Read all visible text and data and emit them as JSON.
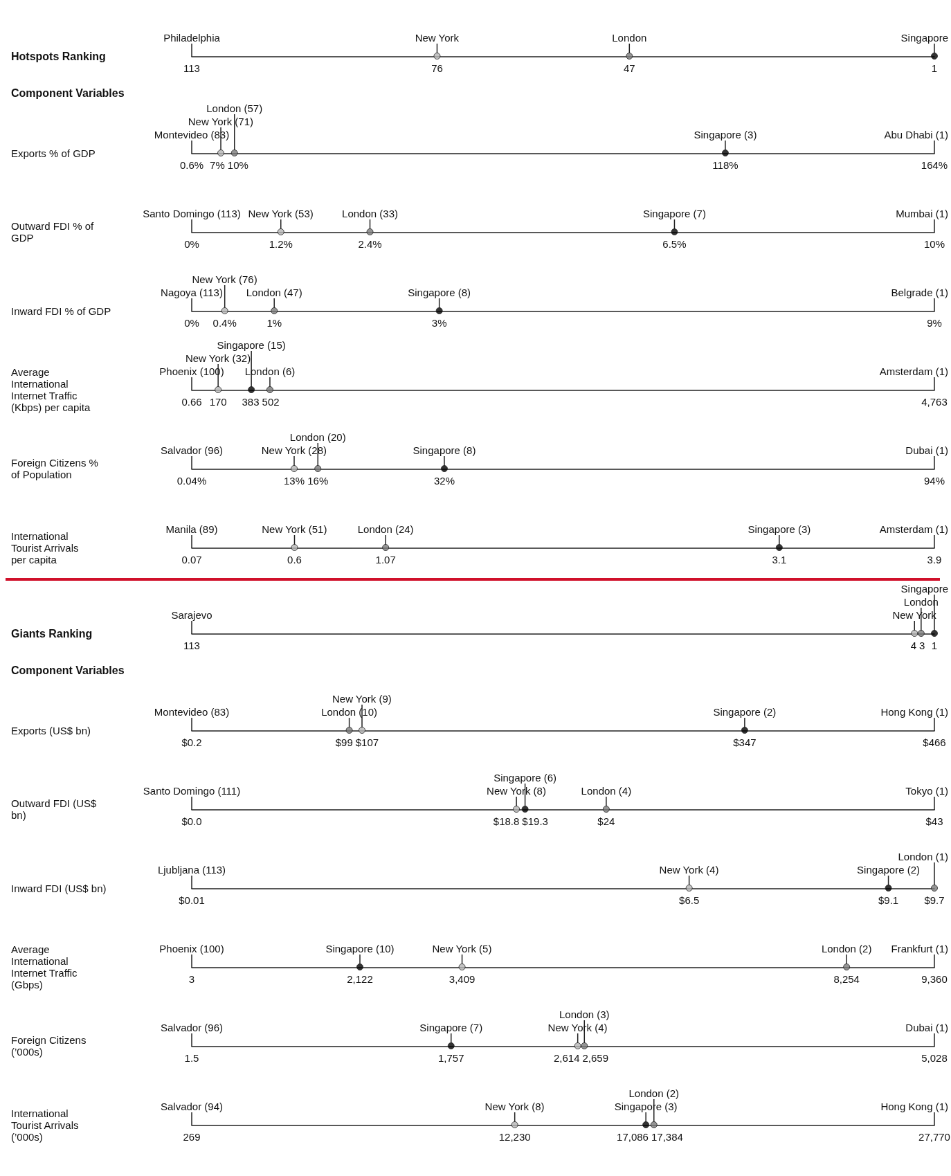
{
  "chart_data": [
    {
      "type": "scatter",
      "orientation": "horizontal",
      "categories": [
        "Hotspots Ranking"
      ],
      "xlim": [
        113,
        1
      ],
      "xticks": [
        113,
        1
      ],
      "marker": "circle",
      "series": [
        {
          "name": "New York",
          "color": "#b5b5b5",
          "values": [
            76
          ],
          "value_labels": [
            "76"
          ]
        },
        {
          "name": "London",
          "color": "#7a7a7a",
          "values": [
            47
          ],
          "value_labels": [
            "47"
          ]
        },
        {
          "name": "Singapore",
          "color": "#000000",
          "values": [
            1
          ]
        }
      ],
      "ref_lines": [
        {
          "axis": "x",
          "value": 113,
          "label": "Philadelphia"
        }
      ],
      "annotations": [
        "Component Variables"
      ]
    },
    {
      "type": "scatter",
      "orientation": "horizontal",
      "categories": [
        "Exports % of GDP"
      ],
      "xlim": [
        0.6,
        164
      ],
      "xticks": [
        {
          "value": 0.6,
          "label": "0.6%"
        },
        {
          "value": 164,
          "label": "164%"
        }
      ],
      "marker": "circle",
      "series": [
        {
          "name": "New York (71)",
          "color": "#b5b5b5",
          "values": [
            7
          ],
          "value_labels": [
            "7%"
          ]
        },
        {
          "name": "London (57)",
          "color": "#7a7a7a",
          "values": [
            10
          ],
          "value_labels": [
            "10%"
          ]
        },
        {
          "name": "Singapore (3)",
          "color": "#000000",
          "values": [
            118
          ],
          "value_labels": [
            "118%"
          ]
        }
      ],
      "ref_lines": [
        {
          "axis": "x",
          "value": 0.6,
          "label": "Montevideo (83)"
        },
        {
          "axis": "x",
          "value": 164,
          "label": "Abu Dhabi (1)"
        }
      ]
    },
    {
      "type": "scatter",
      "orientation": "horizontal",
      "categories": [
        "Outward FDI % of GDP"
      ],
      "xlim": [
        0,
        10
      ],
      "xticks": [
        {
          "value": 0,
          "label": "0%"
        },
        {
          "value": 10,
          "label": "10%"
        }
      ],
      "marker": "circle",
      "series": [
        {
          "name": "New York (53)",
          "color": "#b5b5b5",
          "values": [
            1.2
          ],
          "value_labels": [
            "1.2%"
          ]
        },
        {
          "name": "London (33)",
          "color": "#7a7a7a",
          "values": [
            2.4
          ],
          "value_labels": [
            "2.4%"
          ]
        },
        {
          "name": "Singapore (7)",
          "color": "#000000",
          "values": [
            6.5
          ],
          "value_labels": [
            "6.5%"
          ]
        }
      ],
      "ref_lines": [
        {
          "axis": "x",
          "value": 0,
          "label": "Santo Domingo (113)"
        },
        {
          "axis": "x",
          "value": 10,
          "label": "Mumbai (1)"
        }
      ]
    },
    {
      "type": "scatter",
      "orientation": "horizontal",
      "categories": [
        "Inward FDI % of GDP"
      ],
      "xlim": [
        0,
        9
      ],
      "xticks": [
        {
          "value": 0,
          "label": "0%"
        },
        {
          "value": 9,
          "label": "9%"
        }
      ],
      "marker": "circle",
      "series": [
        {
          "name": "New York (76)",
          "color": "#b5b5b5",
          "values": [
            0.4
          ],
          "value_labels": [
            "0.4%"
          ]
        },
        {
          "name": "London (47)",
          "color": "#7a7a7a",
          "values": [
            1
          ],
          "value_labels": [
            "1%"
          ]
        },
        {
          "name": "Singapore (8)",
          "color": "#000000",
          "values": [
            3
          ],
          "value_labels": [
            "3%"
          ]
        }
      ],
      "ref_lines": [
        {
          "axis": "x",
          "value": 0,
          "label": "Nagoya (113)"
        },
        {
          "axis": "x",
          "value": 9,
          "label": "Belgrade (1)"
        }
      ]
    },
    {
      "type": "scatter",
      "orientation": "horizontal",
      "categories": [
        "Average International Internet Traffic (Kbps) per capita"
      ],
      "xlim": [
        0.66,
        4763
      ],
      "xticks": [
        0.66,
        {
          "value": 4763,
          "label": "4,763"
        }
      ],
      "marker": "circle",
      "series": [
        {
          "name": "New York (32)",
          "color": "#b5b5b5",
          "values": [
            170
          ],
          "value_labels": [
            "170"
          ]
        },
        {
          "name": "Singapore (15)",
          "color": "#000000",
          "values": [
            383
          ],
          "value_labels": [
            "383"
          ]
        },
        {
          "name": "London (6)",
          "color": "#7a7a7a",
          "values": [
            502
          ],
          "value_labels": [
            "502"
          ]
        }
      ],
      "ref_lines": [
        {
          "axis": "x",
          "value": 0.66,
          "label": "Phoenix (100)"
        },
        {
          "axis": "x",
          "value": 4763,
          "label": "Amsterdam (1)"
        }
      ]
    },
    {
      "type": "scatter",
      "orientation": "horizontal",
      "categories": [
        "Foreign Citizens % of Population"
      ],
      "xlim": [
        0.04,
        94
      ],
      "xticks": [
        {
          "value": 0.04,
          "label": "0.04%"
        },
        {
          "value": 94,
          "label": "94%"
        }
      ],
      "marker": "circle",
      "series": [
        {
          "name": "New York (28)",
          "color": "#b5b5b5",
          "values": [
            13
          ],
          "value_labels": [
            "13%"
          ]
        },
        {
          "name": "London (20)",
          "color": "#7a7a7a",
          "values": [
            16
          ],
          "value_labels": [
            "16%"
          ]
        },
        {
          "name": "Singapore (8)",
          "color": "#000000",
          "values": [
            32
          ],
          "value_labels": [
            "32%"
          ]
        }
      ],
      "ref_lines": [
        {
          "axis": "x",
          "value": 0.04,
          "label": "Salvador (96)"
        },
        {
          "axis": "x",
          "value": 94,
          "label": "Dubai (1)"
        }
      ]
    },
    {
      "type": "scatter",
      "orientation": "horizontal",
      "categories": [
        "International Tourist Arrivals per capita"
      ],
      "xlim": [
        0.07,
        3.9
      ],
      "xticks": [
        0.07,
        3.9
      ],
      "marker": "circle",
      "series": [
        {
          "name": "New York (51)",
          "color": "#b5b5b5",
          "values": [
            0.6
          ],
          "value_labels": [
            "0.6"
          ]
        },
        {
          "name": "London (24)",
          "color": "#7a7a7a",
          "values": [
            1.07
          ],
          "value_labels": [
            "1.07"
          ]
        },
        {
          "name": "Singapore (3)",
          "color": "#000000",
          "values": [
            3.1
          ],
          "value_labels": [
            "3.1"
          ]
        }
      ],
      "ref_lines": [
        {
          "axis": "x",
          "value": 0.07,
          "label": "Manila (89)"
        },
        {
          "axis": "x",
          "value": 3.9,
          "label": "Amsterdam (1)"
        }
      ]
    },
    {
      "type": "scatter",
      "orientation": "horizontal",
      "categories": [
        "Giants Ranking"
      ],
      "xlim": [
        113,
        1
      ],
      "xticks": [
        113,
        1
      ],
      "marker": "circle",
      "series": [
        {
          "name": "New York",
          "color": "#b5b5b5",
          "values": [
            4
          ],
          "value_labels": [
            "4"
          ]
        },
        {
          "name": "London",
          "color": "#7a7a7a",
          "values": [
            3
          ],
          "value_labels": [
            "3"
          ]
        },
        {
          "name": "Singapore",
          "color": "#000000",
          "values": [
            1
          ]
        }
      ],
      "ref_lines": [
        {
          "axis": "x",
          "value": 113,
          "label": "Sarajevo"
        }
      ],
      "annotations": [
        "Component Variables"
      ]
    },
    {
      "type": "scatter",
      "orientation": "horizontal",
      "categories": [
        "Exports (US$ bn)"
      ],
      "xlim": [
        0.2,
        466
      ],
      "xticks": [
        {
          "value": 0.2,
          "label": "$0.2"
        },
        {
          "value": 466,
          "label": "$466"
        }
      ],
      "marker": "circle",
      "series": [
        {
          "name": "London (10)",
          "color": "#7a7a7a",
          "values": [
            99
          ],
          "value_labels": [
            "$99"
          ]
        },
        {
          "name": "New York (9)",
          "color": "#b5b5b5",
          "values": [
            107
          ],
          "value_labels": [
            "$107"
          ]
        },
        {
          "name": "Singapore (2)",
          "color": "#000000",
          "values": [
            347
          ],
          "value_labels": [
            "$347"
          ]
        }
      ],
      "ref_lines": [
        {
          "axis": "x",
          "value": 0.2,
          "label": "Montevideo (83)"
        },
        {
          "axis": "x",
          "value": 466,
          "label": "Hong Kong (1)"
        }
      ]
    },
    {
      "type": "scatter",
      "orientation": "horizontal",
      "categories": [
        "Outward FDI (US$ bn)"
      ],
      "xlim": [
        0,
        43
      ],
      "xticks": [
        {
          "value": 0,
          "label": "$0.0"
        },
        {
          "value": 43,
          "label": "$43"
        }
      ],
      "marker": "circle",
      "series": [
        {
          "name": "New York (8)",
          "color": "#b5b5b5",
          "values": [
            18.8
          ],
          "value_labels": [
            "$18.8"
          ]
        },
        {
          "name": "Singapore (6)",
          "color": "#000000",
          "values": [
            19.3
          ],
          "value_labels": [
            "$19.3"
          ]
        },
        {
          "name": "London (4)",
          "color": "#7a7a7a",
          "values": [
            24
          ],
          "value_labels": [
            "$24"
          ]
        }
      ],
      "ref_lines": [
        {
          "axis": "x",
          "value": 0,
          "label": "Santo Domingo (111)"
        },
        {
          "axis": "x",
          "value": 43,
          "label": "Tokyo (1)"
        }
      ]
    },
    {
      "type": "scatter",
      "orientation": "horizontal",
      "categories": [
        "Inward FDI (US$ bn)"
      ],
      "xlim": [
        0.01,
        9.7
      ],
      "xticks": [
        {
          "value": 0.01,
          "label": "$0.01"
        },
        {
          "value": 9.7,
          "label": "$9.7"
        }
      ],
      "marker": "circle",
      "series": [
        {
          "name": "New York (4)",
          "color": "#b5b5b5",
          "values": [
            6.5
          ],
          "value_labels": [
            "$6.5"
          ]
        },
        {
          "name": "Singapore (2)",
          "color": "#000000",
          "values": [
            9.1
          ],
          "value_labels": [
            "$9.1"
          ]
        },
        {
          "name": "London (1)",
          "color": "#7a7a7a",
          "values": [
            9.7
          ]
        }
      ],
      "ref_lines": [
        {
          "axis": "x",
          "value": 0.01,
          "label": "Ljubljana (113)"
        }
      ]
    },
    {
      "type": "scatter",
      "orientation": "horizontal",
      "categories": [
        "Average International Internet Traffic (Gbps)"
      ],
      "xlim": [
        3,
        9360
      ],
      "xticks": [
        3,
        {
          "value": 9360,
          "label": "9,360"
        }
      ],
      "marker": "circle",
      "series": [
        {
          "name": "Singapore (10)",
          "color": "#000000",
          "values": [
            2122
          ],
          "value_labels": [
            "2,122"
          ]
        },
        {
          "name": "New York (5)",
          "color": "#b5b5b5",
          "values": [
            3409
          ],
          "value_labels": [
            "3,409"
          ]
        },
        {
          "name": "London (2)",
          "color": "#7a7a7a",
          "values": [
            8254
          ],
          "value_labels": [
            "8,254"
          ]
        }
      ],
      "ref_lines": [
        {
          "axis": "x",
          "value": 3,
          "label": "Phoenix (100)"
        },
        {
          "axis": "x",
          "value": 9360,
          "label": "Frankfurt (1)"
        }
      ]
    },
    {
      "type": "scatter",
      "orientation": "horizontal",
      "categories": [
        "Foreign Citizens (’000s)"
      ],
      "xlim": [
        1.5,
        5028
      ],
      "xticks": [
        1.5,
        {
          "value": 5028,
          "label": "5,028"
        }
      ],
      "marker": "circle",
      "series": [
        {
          "name": "Singapore (7)",
          "color": "#000000",
          "values": [
            1757
          ],
          "value_labels": [
            "1,757"
          ]
        },
        {
          "name": "New York (4)",
          "color": "#b5b5b5",
          "values": [
            2614
          ],
          "value_labels": [
            "2,614"
          ]
        },
        {
          "name": "London (3)",
          "color": "#7a7a7a",
          "values": [
            2659
          ],
          "value_labels": [
            "2,659"
          ]
        }
      ],
      "ref_lines": [
        {
          "axis": "x",
          "value": 1.5,
          "label": "Salvador (96)"
        },
        {
          "axis": "x",
          "value": 5028,
          "label": "Dubai (1)"
        }
      ]
    },
    {
      "type": "scatter",
      "orientation": "horizontal",
      "categories": [
        "International Tourist Arrivals (’000s)"
      ],
      "xlim": [
        269,
        27770
      ],
      "xticks": [
        269,
        {
          "value": 27770,
          "label": "27,770"
        }
      ],
      "marker": "circle",
      "series": [
        {
          "name": "New York (8)",
          "color": "#b5b5b5",
          "values": [
            12230
          ],
          "value_labels": [
            "12,230"
          ]
        },
        {
          "name": "Singapore (3)",
          "color": "#000000",
          "values": [
            17086
          ],
          "value_labels": [
            "17,086"
          ]
        },
        {
          "name": "London (2)",
          "color": "#7a7a7a",
          "values": [
            17384
          ],
          "value_labels": [
            "17,384"
          ]
        }
      ],
      "ref_lines": [
        {
          "axis": "x",
          "value": 269,
          "label": "Salvador (94)"
        },
        {
          "axis": "x",
          "value": 27770,
          "label": "Hong Kong (1)"
        }
      ]
    }
  ]
}
